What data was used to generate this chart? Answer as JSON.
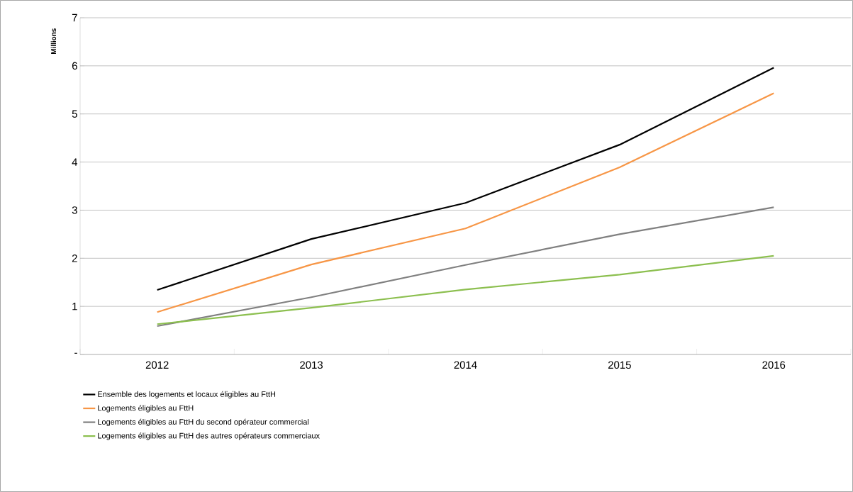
{
  "chart_data": {
    "type": "line",
    "ylabel": "Millions",
    "categories": [
      "2012",
      "2013",
      "2014",
      "2015",
      "2016"
    ],
    "series": [
      {
        "name": "Ensemble des logements et locaux éligibles au FttH",
        "color": "#000000",
        "values": [
          1.34,
          2.4,
          3.15,
          4.36,
          5.96
        ]
      },
      {
        "name": "Logements éligibles au FttH",
        "color": "#f79646",
        "values": [
          0.88,
          1.87,
          2.62,
          3.89,
          5.43
        ]
      },
      {
        "name": "Logements éligibles au FttH du second opérateur commercial",
        "color": "#808080",
        "values": [
          0.59,
          1.19,
          1.86,
          2.5,
          3.06
        ]
      },
      {
        "name": "Logements éligibles au FttH des autres opérateurs commerciaux",
        "color": "#8cbf4f",
        "values": [
          0.63,
          0.97,
          1.35,
          1.66,
          2.05
        ]
      }
    ],
    "ylim": [
      0,
      7
    ],
    "yticks": [
      {
        "value": 0,
        "label": "-"
      },
      1,
      2,
      3,
      4,
      5,
      6,
      7
    ],
    "grid": "y",
    "legend": "bottom",
    "marker": "none",
    "line_style": "solid"
  }
}
